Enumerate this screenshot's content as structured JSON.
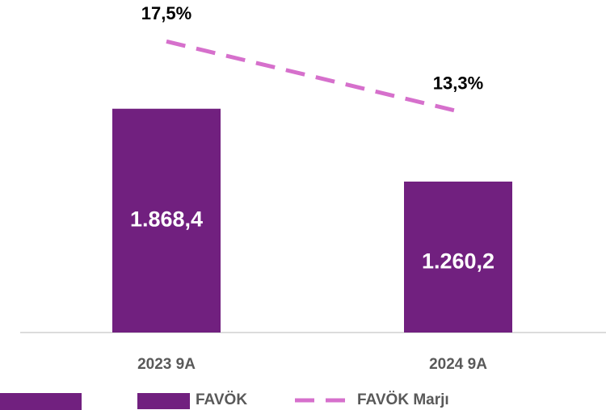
{
  "chart_data": {
    "type": "bar",
    "categories": [
      "2023 9A",
      "2024 9A"
    ],
    "series": [
      {
        "name": "FAVÖK",
        "type": "bar",
        "color": "#71207f",
        "values": [
          1868.4,
          1260.2
        ],
        "value_labels": [
          "1.868,4",
          "1.260,2"
        ]
      },
      {
        "name": "FAVÖK Marjı",
        "type": "line",
        "axis": "y2",
        "color": "#d670cc",
        "dashed": true,
        "values": [
          17.5,
          13.3
        ],
        "value_labels": [
          "17,5%",
          "13,3%"
        ]
      }
    ],
    "ylim": [
      0,
      2500
    ],
    "y2lim": [
      0,
      18
    ],
    "legend": "bottom"
  }
}
